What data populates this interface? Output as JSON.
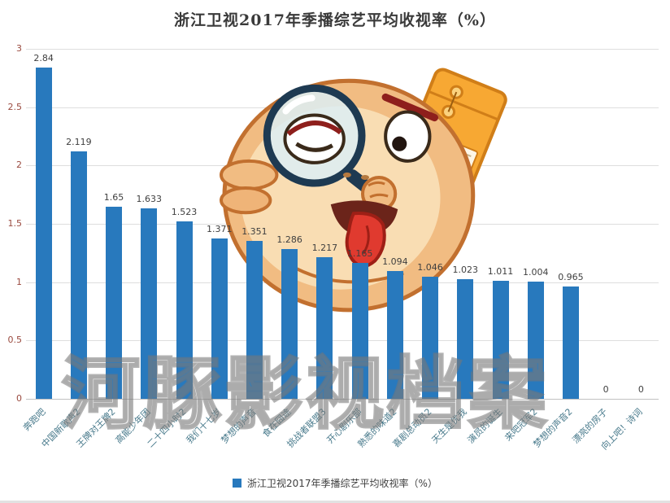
{
  "title": "浙江卫视2017年季播综艺平均收视率（%）",
  "legend": {
    "label": "浙江卫视2017年季播综艺平均收视率（%）"
  },
  "watermark": {
    "text": "河豚影视档案",
    "mascot": "pufferfish-with-magnifying-glass-and-envelope"
  },
  "colors": {
    "bar": "#2879bd",
    "grid": "#dedede",
    "axis": "#c2c2c2",
    "title_text": "#3a3a3a",
    "value_label": "#3f3f3f",
    "y_tick": "#9a4a3f",
    "x_tick": "#47798b",
    "legend_text": "#404040",
    "watermark_stroke": "#767676"
  },
  "chart_data": {
    "type": "bar",
    "title": "浙江卫视2017年季播综艺平均收视率（%）",
    "categories": [
      "奔跑吧",
      "中国新歌声2",
      "王牌对王牌2",
      "高能少年团",
      "二十四小时2",
      "我们十七岁",
      "梦想的声音",
      "食在囧途",
      "挑战者联盟3",
      "开心剧乐部",
      "熟悉的味道2",
      "喜剧总动员2",
      "天生是优我",
      "演员的诞生",
      "来吧冠军2",
      "梦想的声音2",
      "漂亮的房子",
      "向上吧！诗词"
    ],
    "values": [
      2.84,
      2.119,
      1.65,
      1.633,
      1.523,
      1.371,
      1.351,
      1.286,
      1.217,
      1.165,
      1.094,
      1.046,
      1.023,
      1.011,
      1.004,
      0.965,
      0,
      0
    ],
    "value_labels": [
      "2.84",
      "2.119",
      "1.65",
      "1.633",
      "1.523",
      "1.371",
      "1.351",
      "1.286",
      "1.217",
      "1.165",
      "1.094",
      "1.046",
      "1.023",
      "1.011",
      "1.004",
      "0.965",
      "0",
      "0"
    ],
    "xlabel": "",
    "ylabel": "",
    "ylim": [
      0,
      3
    ],
    "yticks": [
      0,
      0.5,
      1,
      1.5,
      2,
      2.5,
      3
    ],
    "grid": true,
    "legend_position": "bottom"
  }
}
